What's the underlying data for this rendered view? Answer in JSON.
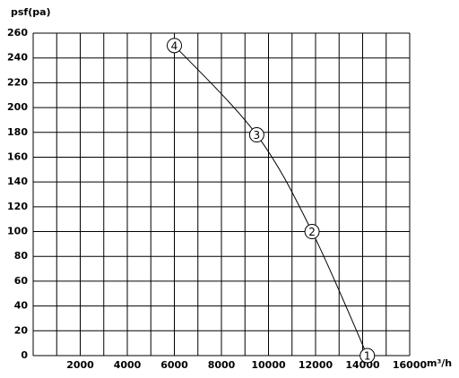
{
  "chart_data": {
    "type": "line",
    "y_label": "psf(pa)",
    "x_label": "m³/h",
    "xlim": [
      0,
      16000
    ],
    "ylim": [
      0,
      260
    ],
    "xticks": [
      2000,
      4000,
      6000,
      8000,
      10000,
      12000,
      14000,
      16000
    ],
    "xgrid": [
      0,
      1000,
      2000,
      3000,
      4000,
      5000,
      6000,
      7000,
      8000,
      9000,
      10000,
      11000,
      12000,
      13000,
      14000,
      15000,
      16000
    ],
    "yticks": [
      0,
      20,
      40,
      60,
      80,
      100,
      120,
      140,
      160,
      180,
      200,
      220,
      240,
      260
    ],
    "grid": true,
    "series": [
      {
        "color": "#000000",
        "x": [
          6000,
          9500,
          11850,
          14200
        ],
        "values": [
          250,
          178,
          100,
          0
        ],
        "point_labels": [
          "4",
          "3",
          "2",
          "1"
        ]
      }
    ]
  }
}
